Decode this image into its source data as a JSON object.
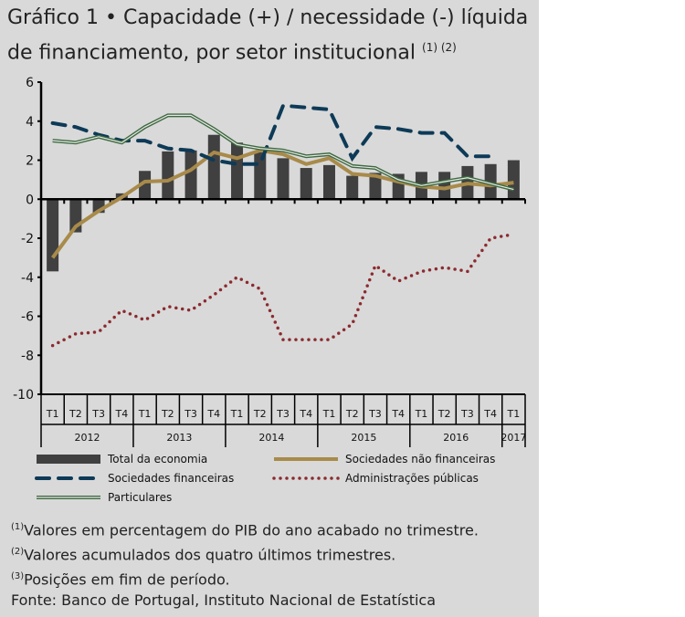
{
  "title": {
    "label": "Gráfico 1",
    "bullet": "•",
    "text_line1": "Capacidade (+) / necessidade (-) líquida",
    "text_line2": "de financiamento, por setor institucional",
    "refs": "(1) (2)"
  },
  "notes": [
    {
      "ref": "(1)",
      "text": "Valores em percentagem do PIB do ano acabado no trimestre."
    },
    {
      "ref": "(2)",
      "text": "Valores acumulados dos quatro últimos trimestres."
    },
    {
      "ref": "(3)",
      "text": "Posições em fim de período."
    }
  ],
  "source": "Fonte: Banco de Portugal, Instituto Nacional de Estatística",
  "chart_data": {
    "type": "bar+line",
    "ylim": [
      -10,
      6
    ],
    "yticks": [
      6,
      4,
      2,
      0,
      -2,
      -4,
      -6,
      -8,
      -10
    ],
    "categories": [
      "T1",
      "T2",
      "T3",
      "T4",
      "T1",
      "T2",
      "T3",
      "T4",
      "T1",
      "T2",
      "T3",
      "T4",
      "T1",
      "T2",
      "T3",
      "T4",
      "T1",
      "T2",
      "T3",
      "T4",
      "T1"
    ],
    "years": [
      {
        "label": "2012",
        "start": 0,
        "count": 4
      },
      {
        "label": "2013",
        "start": 4,
        "count": 4
      },
      {
        "label": "2014",
        "start": 8,
        "count": 4
      },
      {
        "label": "2015",
        "start": 12,
        "count": 4
      },
      {
        "label": "2016",
        "start": 16,
        "count": 4
      },
      {
        "label": "2017",
        "start": 20,
        "count": 1
      }
    ],
    "series": [
      {
        "name": "Total da economia",
        "kind": "bar",
        "color": "#404040",
        "values": [
          -3.7,
          -1.7,
          -0.7,
          0.3,
          1.45,
          2.45,
          2.5,
          3.3,
          2.9,
          2.4,
          2.1,
          1.6,
          1.75,
          1.2,
          1.35,
          1.3,
          1.4,
          1.4,
          1.7,
          1.8,
          2.0
        ]
      },
      {
        "name": "Sociedades não financeiras",
        "kind": "line",
        "color": "#a88a4a",
        "values": [
          -3.0,
          -1.4,
          -0.6,
          0.1,
          0.9,
          0.95,
          1.5,
          2.4,
          2.1,
          2.5,
          2.3,
          1.8,
          2.1,
          1.3,
          1.2,
          0.9,
          0.65,
          0.55,
          0.8,
          0.7,
          0.85
        ]
      },
      {
        "name": "Sociedades financeiras",
        "kind": "dashed",
        "color": "#0d3a57",
        "values": [
          3.9,
          3.7,
          3.3,
          3.0,
          3.0,
          2.6,
          2.5,
          2.0,
          1.8,
          1.8,
          4.8,
          4.7,
          4.6,
          2.1,
          3.7,
          3.6,
          3.4,
          3.4,
          2.2,
          2.2,
          null
        ]
      },
      {
        "name": "Administrações públicas",
        "kind": "dotted",
        "color": "#8b2a2f",
        "values": [
          -7.5,
          -6.9,
          -6.8,
          -5.7,
          -6.2,
          -5.5,
          -5.7,
          -4.9,
          -4.0,
          -4.6,
          -7.2,
          -7.2,
          -7.2,
          -6.4,
          -3.4,
          -4.2,
          -3.7,
          -3.5,
          -3.7,
          -2.0,
          -1.8
        ]
      },
      {
        "name": "Particulares",
        "kind": "double",
        "color": "#3e6a40",
        "values": [
          3.0,
          2.9,
          3.2,
          2.9,
          3.7,
          4.3,
          4.3,
          3.6,
          2.8,
          2.6,
          2.5,
          2.2,
          2.3,
          1.7,
          1.6,
          1.0,
          0.7,
          0.9,
          1.1,
          0.8,
          0.5
        ]
      }
    ]
  }
}
